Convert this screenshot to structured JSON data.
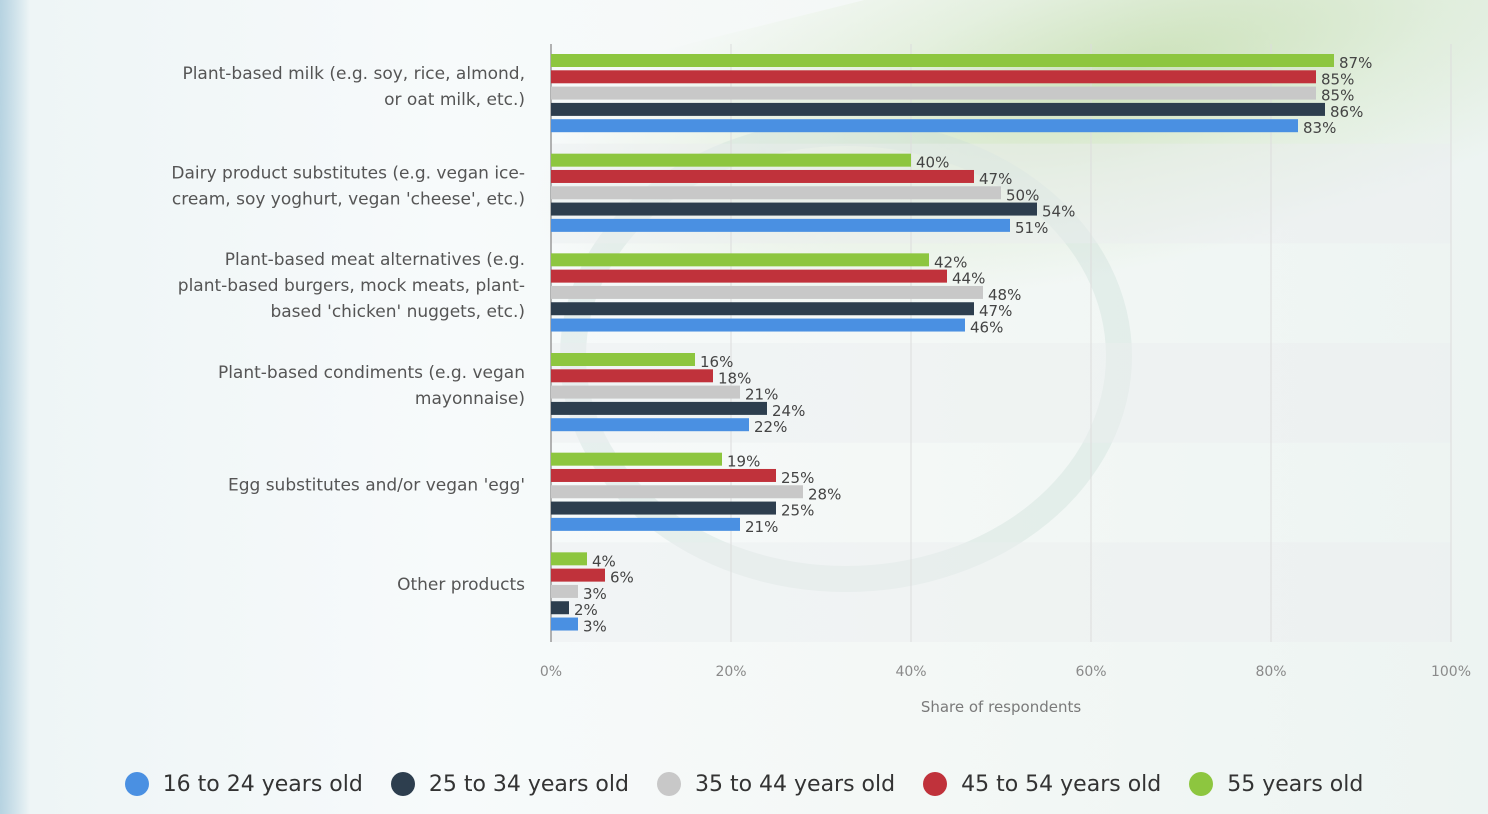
{
  "chart_data": {
    "type": "bar",
    "orientation": "horizontal",
    "categories": [
      [
        "Plant-based milk (e.g. soy, rice, almond,",
        "or oat milk, etc.)"
      ],
      [
        "Dairy product substitutes (e.g. vegan ice-",
        "cream, soy yoghurt, vegan 'cheese', etc.)"
      ],
      [
        "Plant-based meat alternatives (e.g.",
        "plant-based burgers, mock meats, plant-",
        "based 'chicken' nuggets, etc.)"
      ],
      [
        "Plant-based condiments (e.g. vegan",
        "mayonnaise)"
      ],
      [
        "Egg substitutes and/or vegan 'egg'"
      ],
      [
        "Other products"
      ]
    ],
    "series": [
      {
        "name": "55 years old",
        "color": "#8dc63f",
        "values": [
          87,
          40,
          42,
          16,
          19,
          4
        ]
      },
      {
        "name": "45 to 54 years old",
        "color": "#c0323b",
        "values": [
          85,
          47,
          44,
          18,
          25,
          6
        ]
      },
      {
        "name": "35 to 44 years old",
        "color": "#c8c8c8",
        "values": [
          85,
          50,
          48,
          21,
          28,
          3
        ]
      },
      {
        "name": "25 to 34 years old",
        "color": "#2d3e4e",
        "values": [
          86,
          54,
          47,
          24,
          25,
          2
        ]
      },
      {
        "name": "16 to 24 years old",
        "color": "#4a90e2",
        "values": [
          83,
          51,
          46,
          22,
          21,
          3
        ]
      }
    ],
    "xlabel": "Share of respondents",
    "xlim": [
      0,
      100
    ],
    "ticks": [
      "0%",
      "20%",
      "40%",
      "60%",
      "80%",
      "100%"
    ],
    "value_suffix": "%",
    "grid": true,
    "legend_position": "bottom"
  },
  "legend": [
    {
      "label": "16 to 24 years old",
      "color": "#4a90e2"
    },
    {
      "label": "25 to 34 years old",
      "color": "#2d3e4e"
    },
    {
      "label": "35 to 44 years old",
      "color": "#c8c8c8"
    },
    {
      "label": "45 to 54 years old",
      "color": "#c0323b"
    },
    {
      "label": "55 years old",
      "color": "#8dc63f"
    }
  ]
}
